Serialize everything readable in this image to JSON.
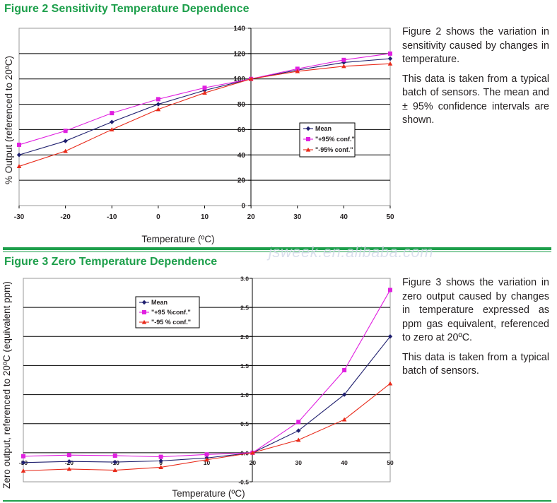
{
  "watermark": "jsweek.en.alibaba.com",
  "chart_data": [
    {
      "type": "line",
      "title": "Figure 2 Sensitivity Temperature Dependence",
      "xlabel": "Temperature (ºC)",
      "ylabel": "% Output (referenced to 20ºC)",
      "x": [
        -30,
        -20,
        -10,
        0,
        10,
        20,
        30,
        40,
        50
      ],
      "x_ticks": [
        "-30",
        "-20",
        "-10",
        "0",
        "10",
        "20",
        "30",
        "40",
        "50"
      ],
      "xlim": [
        -30,
        50
      ],
      "ylim": [
        0,
        140
      ],
      "y_ticks": [
        0,
        20,
        40,
        60,
        80,
        100,
        120,
        140
      ],
      "grid": true,
      "legend": "center-right",
      "series": [
        {
          "name": "Mean",
          "color": "#1f1f6e",
          "marker": "diamond",
          "values": [
            40,
            51,
            66,
            80,
            91,
            100,
            107,
            113,
            116
          ]
        },
        {
          "name": "\"+95% conf.\"",
          "color": "#e020e0",
          "marker": "square",
          "values": [
            48,
            59,
            73,
            84,
            93,
            100,
            108,
            115,
            120
          ]
        },
        {
          "name": "\"-95% conf.\"",
          "color": "#e82a1a",
          "marker": "triangle",
          "values": [
            31,
            43,
            60,
            76,
            89,
            100,
            106,
            110,
            112
          ]
        }
      ]
    },
    {
      "type": "line",
      "title": "Figure 3  Zero Temperature Dependence",
      "xlabel": "Temperature (ºC)",
      "ylabel": "Zero output, referenced to 20ºC (equivalent ppm)",
      "x": [
        -30,
        -20,
        -10,
        0,
        10,
        20,
        30,
        40,
        50
      ],
      "x_ticks": [
        "-30",
        "-20",
        "-10",
        "0",
        "10",
        "20",
        "30",
        "40",
        "50"
      ],
      "xlim": [
        -30,
        50
      ],
      "ylim": [
        -0.5,
        3.0
      ],
      "y_ticks": [
        "-0.5",
        "0.0",
        "0.5",
        "1.0",
        "1.5",
        "2.0",
        "2.5",
        "3.0"
      ],
      "grid": true,
      "legend": "top-left",
      "series": [
        {
          "name": "Mean",
          "color": "#1f1f6e",
          "marker": "diamond",
          "values": [
            -0.17,
            -0.15,
            -0.16,
            -0.14,
            -0.09,
            0.0,
            0.38,
            1.0,
            2.0
          ]
        },
        {
          "name": "\"+95 %conf.\"",
          "color": "#e020e0",
          "marker": "square",
          "values": [
            -0.06,
            -0.04,
            -0.05,
            -0.07,
            -0.03,
            0.0,
            0.53,
            1.42,
            2.8
          ]
        },
        {
          "name": "\"-95 % conf.\"",
          "color": "#e82a1a",
          "marker": "triangle",
          "values": [
            -0.31,
            -0.28,
            -0.3,
            -0.25,
            -0.12,
            0.0,
            0.22,
            0.57,
            1.19
          ]
        }
      ]
    }
  ],
  "descriptions": {
    "fig2": [
      "Figure 2 shows the variation in sensitivity caused by changes in temperature.",
      "This data is taken from a typical batch of sensors. The mean and ± 95% confidence intervals are shown."
    ],
    "fig3": [
      "Figure 3 shows the variation in zero output caused by changes in temperature expressed as ppm gas equivalent, referenced to zero at 20ºC.",
      "This data is taken from a typical batch of sensors."
    ]
  },
  "colors": {
    "heading": "#1d9f4b",
    "rule": "#1d9f4b"
  }
}
